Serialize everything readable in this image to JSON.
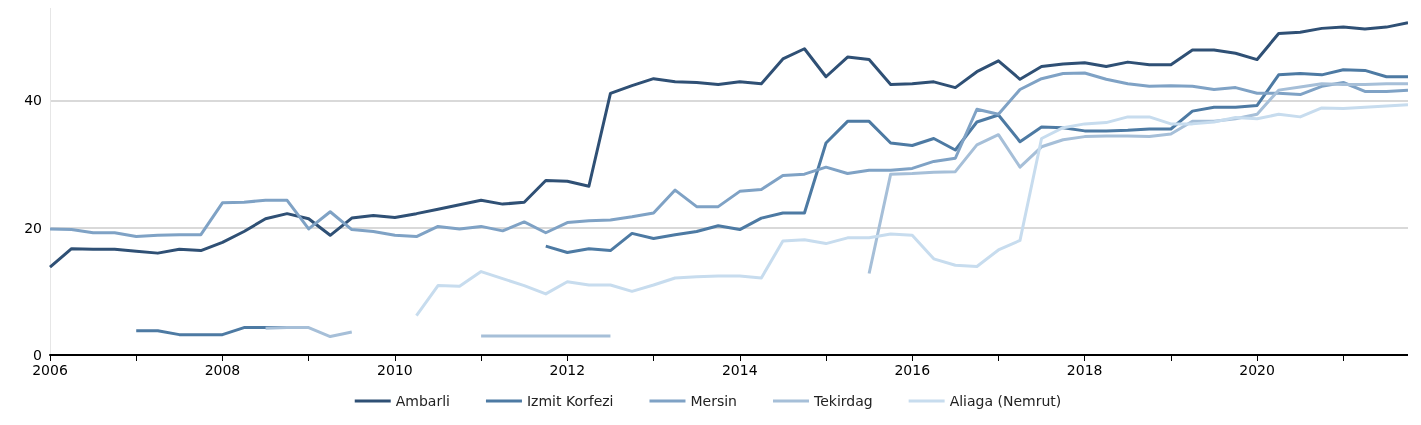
{
  "chart_data": {
    "type": "line",
    "x": [
      2006,
      2006.25,
      2006.5,
      2006.75,
      2007,
      2007.25,
      2007.5,
      2007.75,
      2008,
      2008.25,
      2008.5,
      2008.75,
      2009,
      2009.25,
      2009.5,
      2009.75,
      2010,
      2010.25,
      2010.5,
      2010.75,
      2011,
      2011.25,
      2011.5,
      2011.75,
      2012,
      2012.25,
      2012.5,
      2012.75,
      2013,
      2013.25,
      2013.5,
      2013.75,
      2014,
      2014.25,
      2014.5,
      2014.75,
      2015,
      2015.25,
      2015.5,
      2015.75,
      2016,
      2016.25,
      2016.5,
      2016.75,
      2017,
      2017.25,
      2017.5,
      2017.75,
      2018,
      2018.25,
      2018.5,
      2018.75,
      2019,
      2019.25,
      2019.5,
      2019.75,
      2020,
      2020.25,
      2020.5,
      2020.75,
      2021,
      2021.25,
      2021.5,
      2021.75
    ],
    "series": [
      {
        "name": "Ambarli",
        "color": "#2f5075",
        "values": [
          13.8,
          16.7,
          16.6,
          16.6,
          16.3,
          16.0,
          16.6,
          16.4,
          17.7,
          19.4,
          21.4,
          22.2,
          21.4,
          18.8,
          21.5,
          21.9,
          21.6,
          22.2,
          22.9,
          23.6,
          24.3,
          23.7,
          24.0,
          27.4,
          27.3,
          26.5,
          41.1,
          42.3,
          43.4,
          42.9,
          42.8,
          42.5,
          42.9,
          42.6,
          46.5,
          48.1,
          43.7,
          46.8,
          46.4,
          42.5,
          42.6,
          42.9,
          42.0,
          44.5,
          46.2,
          43.3,
          45.3,
          45.7,
          45.9,
          45.3,
          46.0,
          45.6,
          45.6,
          47.9,
          47.9,
          47.4,
          46.4,
          50.5,
          50.7,
          51.3,
          51.5,
          51.2,
          51.5,
          52.2
        ]
      },
      {
        "name": "Izmit Korfezi",
        "color": "#4d7aa3",
        "values": [
          null,
          null,
          null,
          null,
          3.8,
          3.8,
          3.2,
          3.2,
          3.2,
          4.3,
          4.3,
          4.3,
          null,
          null,
          null,
          null,
          null,
          null,
          null,
          null,
          null,
          null,
          null,
          17.1,
          16.1,
          16.7,
          16.4,
          19.1,
          18.3,
          18.9,
          19.4,
          20.3,
          19.7,
          21.5,
          22.3,
          22.3,
          33.3,
          36.7,
          36.7,
          33.3,
          32.9,
          34.0,
          32.2,
          36.6,
          37.7,
          33.5,
          35.8,
          35.7,
          35.2,
          35.2,
          35.3,
          35.5,
          35.5,
          38.3,
          38.9,
          38.9,
          39.2,
          44.0,
          44.2,
          44.0,
          44.8,
          44.7,
          43.7,
          43.7
        ]
      },
      {
        "name": "Mersin",
        "color": "#7fa2c5",
        "values": [
          19.8,
          19.7,
          19.2,
          19.2,
          18.6,
          18.8,
          18.9,
          18.9,
          23.9,
          24.0,
          24.3,
          24.3,
          19.8,
          22.5,
          19.7,
          19.4,
          18.8,
          18.6,
          20.2,
          19.8,
          20.2,
          19.5,
          20.9,
          19.2,
          20.8,
          21.1,
          21.2,
          21.7,
          22.3,
          25.9,
          23.3,
          23.3,
          25.7,
          26.0,
          28.2,
          28.4,
          29.5,
          28.5,
          29.0,
          29.0,
          29.3,
          30.4,
          30.9,
          38.6,
          37.8,
          41.7,
          43.4,
          44.2,
          44.3,
          43.3,
          42.6,
          42.2,
          42.3,
          42.2,
          41.7,
          42.0,
          41.1,
          41.1,
          40.9,
          42.2,
          42.8,
          41.4,
          41.4,
          41.6
        ]
      },
      {
        "name": "Tekirdag",
        "color": "#a6bfd8",
        "values": [
          null,
          null,
          null,
          null,
          null,
          null,
          null,
          null,
          null,
          null,
          4.2,
          4.3,
          4.3,
          2.9,
          3.6,
          null,
          null,
          null,
          null,
          null,
          3.0,
          3.0,
          3.0,
          3.0,
          3.0,
          3.0,
          3.0,
          null,
          null,
          null,
          null,
          null,
          null,
          null,
          null,
          null,
          null,
          null,
          12.8,
          28.4,
          28.5,
          28.7,
          28.8,
          33.0,
          34.6,
          29.5,
          32.7,
          33.8,
          34.3,
          34.4,
          34.4,
          34.3,
          34.7,
          36.7,
          36.7,
          37.1,
          37.8,
          41.6,
          42.1,
          42.6,
          42.5,
          42.5,
          42.6,
          42.6
        ]
      },
      {
        "name": "Aliaga (Nemrut)",
        "color": "#c7dcee",
        "values": [
          null,
          null,
          null,
          null,
          null,
          null,
          null,
          null,
          null,
          null,
          null,
          null,
          null,
          null,
          null,
          null,
          null,
          6.2,
          10.9,
          10.8,
          13.1,
          12.0,
          10.9,
          9.6,
          11.5,
          11.0,
          11.0,
          10.0,
          11.0,
          12.1,
          12.3,
          12.4,
          12.4,
          12.1,
          17.9,
          18.1,
          17.5,
          18.4,
          18.4,
          19.0,
          18.8,
          15.1,
          14.1,
          13.9,
          16.5,
          18.0,
          34.0,
          35.7,
          36.3,
          36.5,
          37.4,
          37.4,
          36.3,
          36.3,
          36.6,
          37.3,
          37.1,
          37.8,
          37.4,
          38.8,
          38.7,
          38.9,
          39.1,
          39.3
        ]
      }
    ],
    "xlim": [
      2006,
      2021.75
    ],
    "xticks": [
      2006,
      {
        "value": 2007,
        "label": null
      },
      2008,
      {
        "value": 2009,
        "label": null
      },
      2010,
      {
        "value": 2011,
        "label": null
      },
      2012,
      {
        "value": 2013,
        "label": null
      },
      2014,
      {
        "value": 2015,
        "label": null
      },
      2016,
      {
        "value": 2017,
        "label": null
      },
      2018,
      {
        "value": 2019,
        "label": null
      },
      2020,
      {
        "value": 2021,
        "label": null
      }
    ],
    "ylim": [
      0,
      54.5
    ],
    "yticks": [
      0,
      20,
      40
    ],
    "grid": "y",
    "legend": "bottom",
    "marker": "none",
    "line_style": "solid"
  }
}
